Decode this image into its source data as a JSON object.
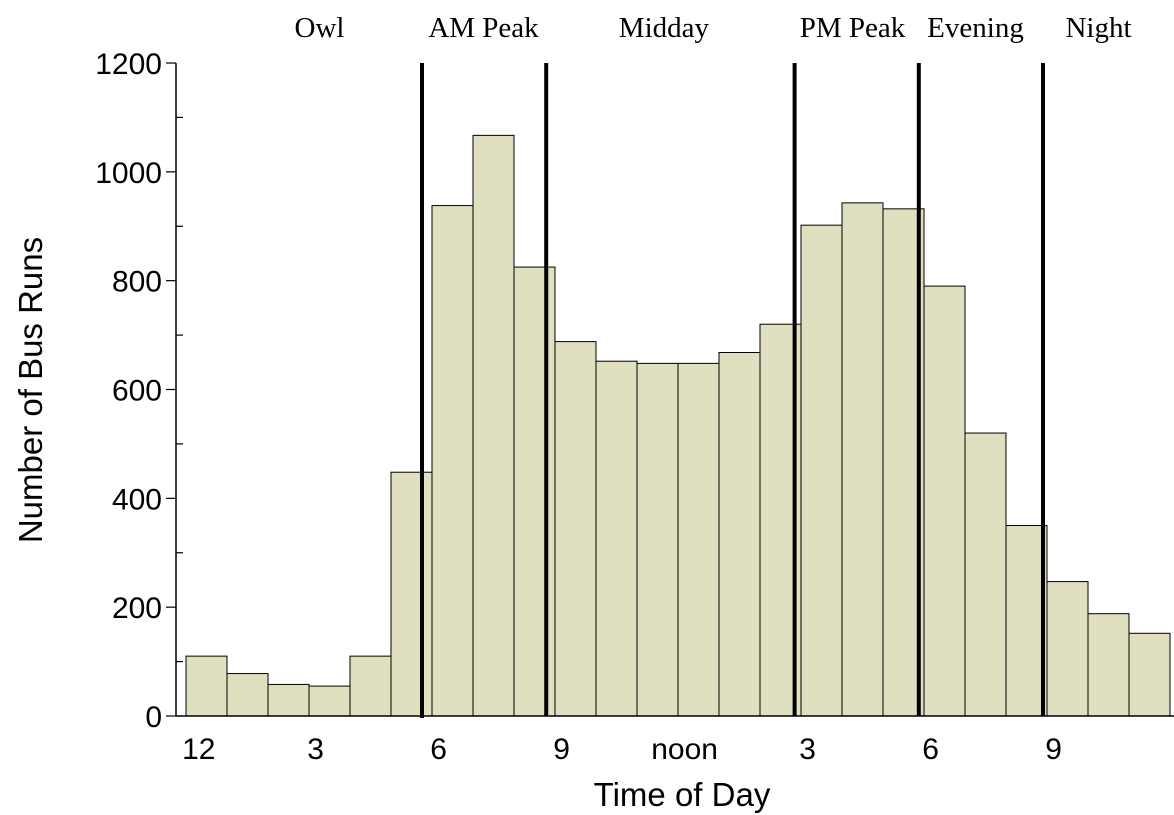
{
  "chart_data": {
    "type": "bar",
    "title": "",
    "xlabel": "Time of Day",
    "ylabel": "Number of Bus Runs",
    "ylim": [
      0,
      1200
    ],
    "yticks": [
      0,
      200,
      400,
      600,
      800,
      1000,
      1200
    ],
    "grid": false,
    "hours": [
      0,
      1,
      2,
      3,
      4,
      5,
      6,
      7,
      8,
      9,
      10,
      11,
      12,
      13,
      14,
      15,
      16,
      17,
      18,
      19,
      20,
      21,
      22,
      23
    ],
    "values": [
      110,
      78,
      58,
      55,
      110,
      448,
      938,
      1067,
      825,
      688,
      652,
      648,
      648,
      668,
      720,
      902,
      943,
      932,
      790,
      520,
      350,
      247,
      188,
      152
    ],
    "bar_color": "#e0dfc0",
    "bar_edge_color": "#000000",
    "xtick_labels": [
      {
        "hour": 0.75,
        "label": "12"
      },
      {
        "hour": 3.6,
        "label": "3"
      },
      {
        "hour": 6.6,
        "label": "6"
      },
      {
        "hour": 9.6,
        "label": "9"
      },
      {
        "hour": 12.6,
        "label": "noon"
      },
      {
        "hour": 15.6,
        "label": "3"
      },
      {
        "hour": 18.6,
        "label": "6"
      },
      {
        "hour": 21.6,
        "label": "9"
      }
    ],
    "period_boundaries": [
      6,
      9,
      15,
      18,
      21
    ],
    "periods": [
      {
        "label": "Owl",
        "center_hour": 3.5
      },
      {
        "label": "AM Peak",
        "center_hour": 7.5
      },
      {
        "label": "Midday",
        "center_hour": 11.9
      },
      {
        "label": "PM Peak",
        "center_hour": 16.5
      },
      {
        "label": "Evening",
        "center_hour": 19.5
      },
      {
        "label": "Night",
        "center_hour": 22.5
      }
    ]
  }
}
